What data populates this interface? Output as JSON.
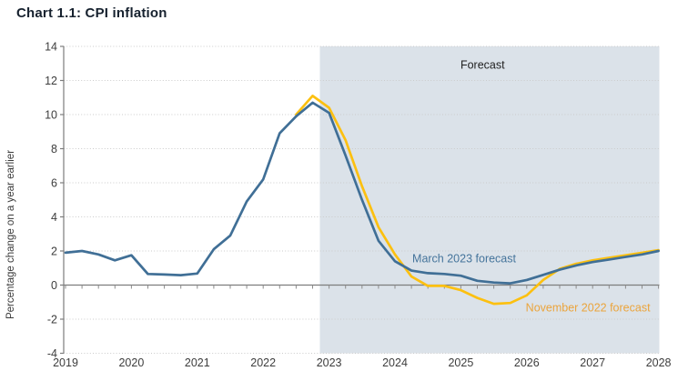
{
  "title": "Chart 1.1: CPI inflation",
  "chart_data": {
    "type": "line",
    "title": "Chart 1.1: CPI inflation",
    "xlabel": "",
    "ylabel": "Percentage change on a year earlier",
    "ylim": [
      -4,
      14
    ],
    "y_ticks": [
      -4,
      -2,
      0,
      2,
      4,
      6,
      8,
      10,
      12,
      14
    ],
    "x_years": [
      2019,
      2020,
      2021,
      2022,
      2023,
      2024,
      2025,
      2026,
      2027,
      2028
    ],
    "x_minor_tick_interval_years": 0.25,
    "grid": "horizontal-dotted",
    "forecast_region_start": 2022.86,
    "forecast_region_color": "#dbe2e9",
    "axis_color": "#7d7d7d",
    "gridline_color": "#cbcbcb",
    "tick_label_color": "#3d3d3d",
    "series": [
      {
        "name": "November 2022 forecast",
        "color": "#fcc010",
        "x_start": 2022.5,
        "x_step": 0.25,
        "values": [
          10.0,
          11.1,
          10.4,
          8.5,
          5.8,
          3.4,
          1.8,
          0.5,
          -0.05,
          -0.05,
          -0.3,
          -0.75,
          -1.1,
          -1.05,
          -0.6,
          0.3,
          0.95,
          1.25,
          1.45,
          1.6,
          1.75,
          1.9,
          2.05
        ]
      },
      {
        "name": "March 2023 forecast",
        "color": "#406f96",
        "x_start": 2019.0,
        "x_step": 0.25,
        "values": [
          1.9,
          2.0,
          1.8,
          1.45,
          1.75,
          0.65,
          0.62,
          0.58,
          0.68,
          2.1,
          2.9,
          4.9,
          6.2,
          8.9,
          9.9,
          10.7,
          10.1,
          7.6,
          5.0,
          2.6,
          1.4,
          0.85,
          0.7,
          0.65,
          0.55,
          0.25,
          0.15,
          0.1,
          0.3,
          0.6,
          0.9,
          1.15,
          1.35,
          1.5,
          1.65,
          1.8,
          2.0
        ]
      }
    ],
    "annotations": [
      {
        "id": "forecast-label",
        "text": "Forecast",
        "x": 2025.33,
        "y": 12.93,
        "color": "#1f1f1f",
        "size": 12.5
      },
      {
        "id": "march-2023-forecast-label",
        "text": "March 2023 forecast",
        "x": 2025.05,
        "y": 1.57,
        "color": "#45749b",
        "size": 12.5
      },
      {
        "id": "november-2022-forecast-label",
        "text": "November 2022 forecast",
        "x": 2026.93,
        "y": -1.3,
        "color": "#eba43c",
        "size": 12.5
      }
    ]
  }
}
